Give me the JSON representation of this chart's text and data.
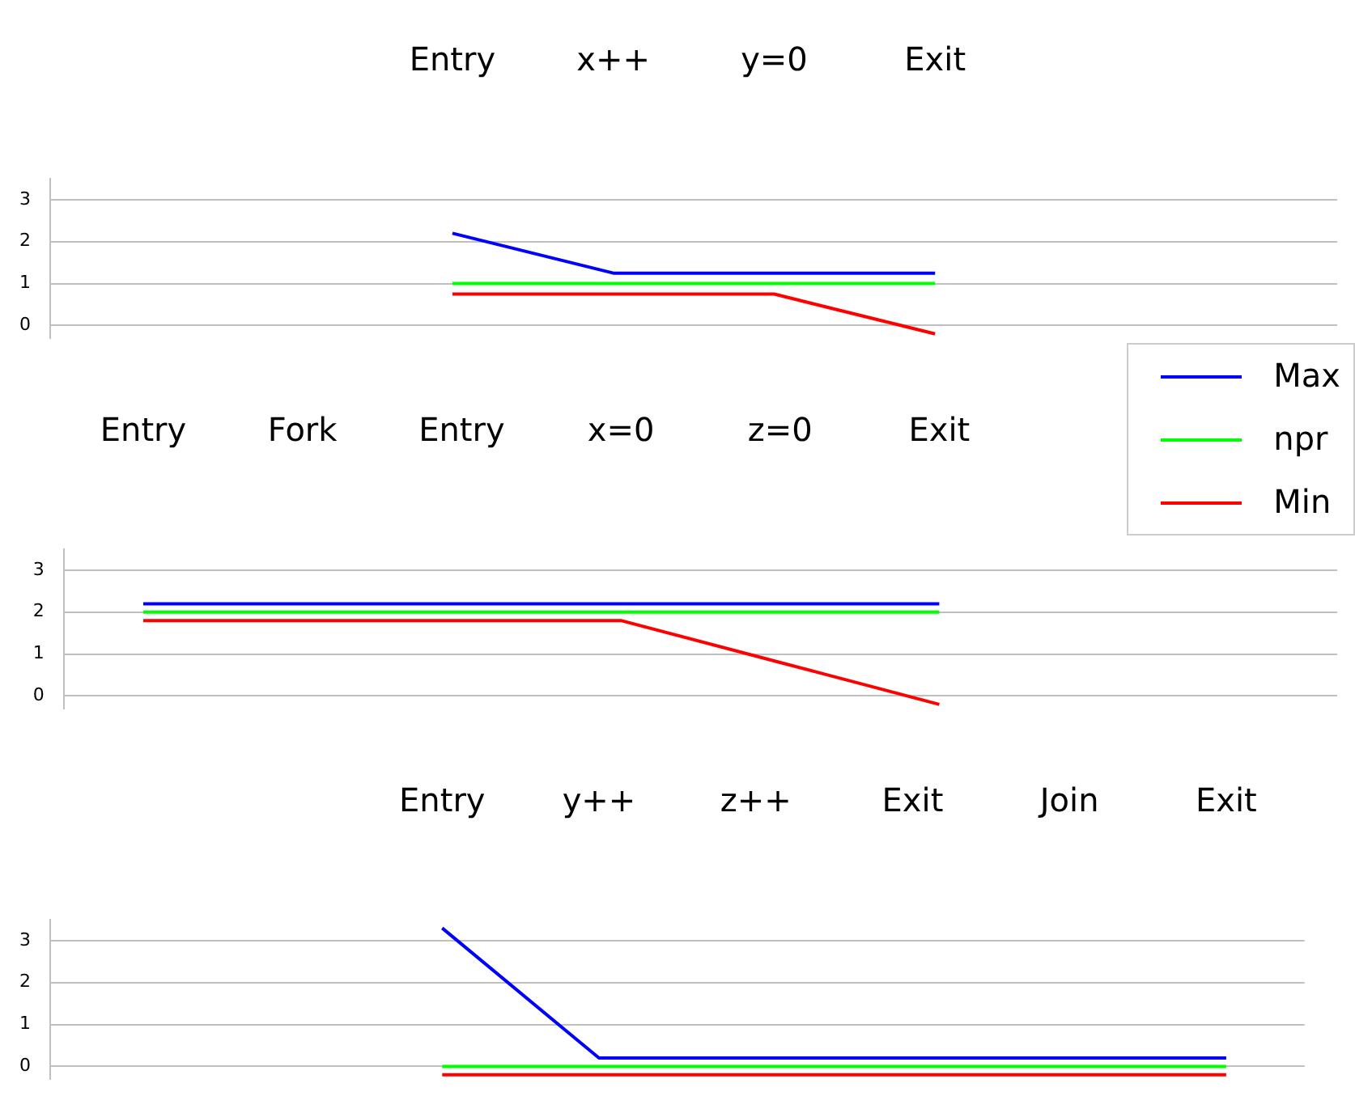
{
  "chart_data": [
    {
      "type": "line",
      "categories": [
        null,
        null,
        "Entry",
        "x++",
        "y=0",
        "Exit",
        null,
        null
      ],
      "series": [
        {
          "name": "Max",
          "color": "#0000ff",
          "values": [
            null,
            null,
            2.2,
            1.25,
            1.25,
            1.25,
            null,
            null
          ]
        },
        {
          "name": "npr",
          "color": "#00ff00",
          "values": [
            null,
            null,
            1,
            1,
            1,
            1,
            null,
            null
          ]
        },
        {
          "name": "Min",
          "color": "#ff0000",
          "values": [
            null,
            null,
            0.75,
            0.75,
            0.75,
            -0.2,
            null,
            null
          ]
        }
      ],
      "ylim": [
        -0.3,
        3.5
      ],
      "yticks": [
        0,
        1,
        2,
        3
      ],
      "grid": "y",
      "legend": "right",
      "marker": "none"
    },
    {
      "type": "line",
      "categories": [
        "Entry",
        "Fork",
        "Entry",
        "x=0",
        "z=0",
        "Exit",
        null,
        null
      ],
      "series": [
        {
          "color": "#0000ff",
          "values": [
            2.2,
            2.2,
            2.2,
            2.2,
            2.2,
            2.2,
            null,
            null
          ]
        },
        {
          "color": "#00ff00",
          "values": [
            2,
            2,
            2,
            2,
            2,
            2,
            null,
            null
          ]
        },
        {
          "color": "#ff0000",
          "values": [
            1.8,
            1.8,
            1.8,
            1.8,
            0.8,
            -0.2,
            null,
            null
          ]
        }
      ],
      "ylim": [
        -0.3,
        3.5
      ],
      "yticks": [
        0,
        1,
        2,
        3
      ],
      "grid": "y",
      "marker": "none"
    },
    {
      "type": "line",
      "categories": [
        null,
        null,
        "Entry",
        "y++",
        "z++",
        "Exit",
        "Join",
        "Exit"
      ],
      "series": [
        {
          "color": "#0000ff",
          "values": [
            null,
            null,
            3.3,
            0.2,
            0.2,
            0.2,
            0.2,
            0.2
          ]
        },
        {
          "color": "#00ff00",
          "values": [
            null,
            null,
            0,
            0,
            0,
            0,
            0,
            0
          ]
        },
        {
          "color": "#ff0000",
          "values": [
            null,
            null,
            -0.2,
            -0.2,
            -0.2,
            -0.2,
            -0.2,
            -0.2
          ]
        }
      ],
      "ylim": [
        -0.3,
        3.5
      ],
      "yticks": [
        0,
        1,
        2,
        3
      ],
      "grid": "y",
      "marker": "none"
    }
  ]
}
